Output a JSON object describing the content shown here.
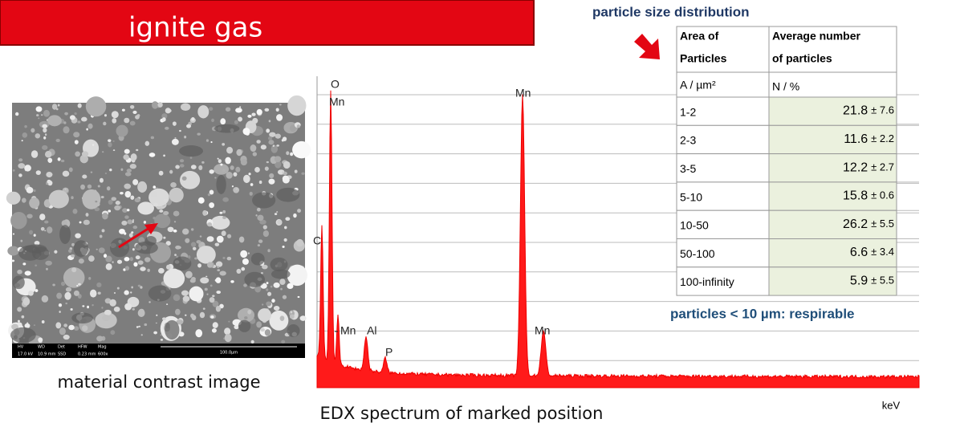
{
  "banner": {
    "title": "ignite gas"
  },
  "sem": {
    "caption": "material contrast image",
    "info_bar": {
      "labels": [
        "HV",
        "WD",
        "Det",
        "HFW",
        "Mag"
      ],
      "values": [
        "17.0 kV",
        "10.9 mm",
        "SSD",
        "0.23 mm",
        "600x"
      ],
      "scale": "100.0µm"
    }
  },
  "spectrum": {
    "caption": "EDX spectrum of marked position",
    "x_unit": "keV",
    "peak_labels": [
      "O",
      "Mn",
      "Mn",
      "C",
      "Mn",
      "Al",
      "P",
      "Mn"
    ]
  },
  "table": {
    "title": "particle size distribution",
    "headers": [
      "Area of",
      "Particles",
      "Average number",
      "of particles"
    ],
    "units": [
      "A / µm²",
      "N / %"
    ],
    "rows": [
      [
        "1-2",
        "21.8",
        "± 7.6"
      ],
      [
        "2-3",
        "11.6",
        "± 2.2"
      ],
      [
        "3-5",
        "12.2",
        "± 2.7"
      ],
      [
        "5-10",
        "15.8",
        "± 0.6"
      ],
      [
        "10-50",
        "26.2",
        "± 5.5"
      ],
      [
        "50-100",
        "6.6",
        "± 3.4"
      ],
      [
        "100-infinity",
        "5.9",
        "± 5.5"
      ]
    ],
    "note": "particles < 10 µm: respirable"
  }
}
